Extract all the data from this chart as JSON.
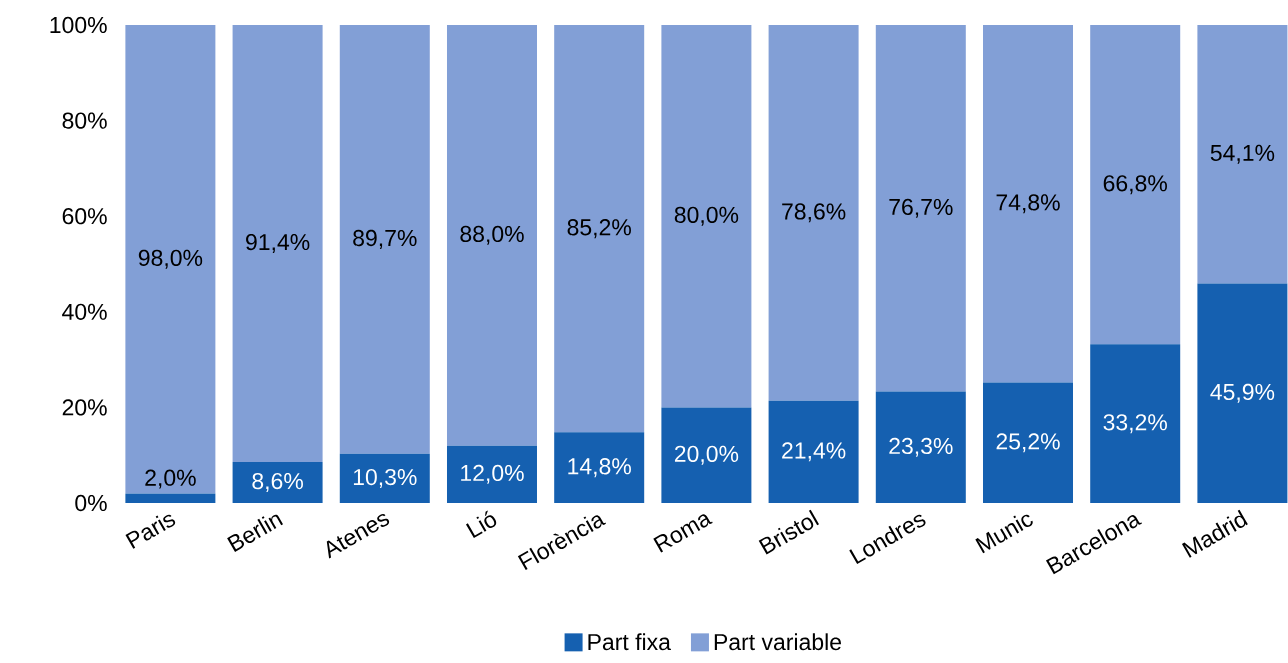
{
  "chart_data": {
    "type": "bar",
    "stacked": true,
    "categories": [
      "Paris",
      "Berlin",
      "Atenes",
      "Lió",
      "Florència",
      "Roma",
      "Bristol",
      "Londres",
      "Munic",
      "Barcelona",
      "Madrid"
    ],
    "series": [
      {
        "name": "Part fixa",
        "color": "#1560b0",
        "values": [
          2.0,
          8.6,
          10.3,
          12.0,
          14.8,
          20.0,
          21.4,
          23.3,
          25.2,
          33.2,
          45.9
        ],
        "value_labels": [
          "2,0%",
          "8,6%",
          "10,3%",
          "12,0%",
          "14,8%",
          "20,0%",
          "21,4%",
          "23,3%",
          "25,2%",
          "33,2%",
          "45,9%"
        ]
      },
      {
        "name": "Part variable",
        "color": "#829fd6",
        "values": [
          98.0,
          91.4,
          89.7,
          88.0,
          85.2,
          80.0,
          78.6,
          76.7,
          74.8,
          66.8,
          54.1
        ],
        "value_labels": [
          "98,0%",
          "91,4%",
          "89,7%",
          "88,0%",
          "85,2%",
          "80,0%",
          "78,6%",
          "76,7%",
          "74,8%",
          "66,8%",
          "54,1%"
        ]
      }
    ],
    "ylim": [
      0,
      100
    ],
    "yticks": [
      {
        "value": 0,
        "label": "0%"
      },
      {
        "value": 20,
        "label": "20%"
      },
      {
        "value": 40,
        "label": "40%"
      },
      {
        "value": 60,
        "label": "60%"
      },
      {
        "value": 80,
        "label": "80%"
      },
      {
        "value": 100,
        "label": "100%"
      }
    ],
    "grid": false,
    "legend": "bottom"
  }
}
